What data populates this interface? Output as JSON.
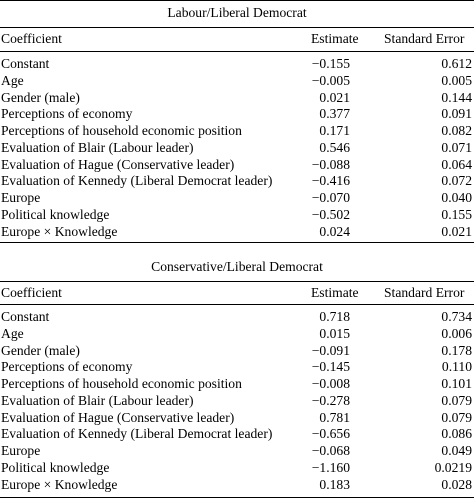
{
  "tables": [
    {
      "title": "Labour/Liberal Democrat",
      "headers": {
        "coefficient": "Coefficient",
        "estimate": "Estimate",
        "stderr": "Standard Error"
      },
      "rows": [
        {
          "coef": "Constant",
          "est": "−0.155",
          "se": "0.612"
        },
        {
          "coef": "Age",
          "est": "−0.005",
          "se": "0.005"
        },
        {
          "coef": "Gender (male)",
          "est": "0.021",
          "se": "0.144"
        },
        {
          "coef": "Perceptions of economy",
          "est": "0.377",
          "se": "0.091"
        },
        {
          "coef": "Perceptions of household economic position",
          "est": "0.171",
          "se": "0.082"
        },
        {
          "coef": "Evaluation of Blair (Labour leader)",
          "est": "0.546",
          "se": "0.071"
        },
        {
          "coef": "Evaluation of Hague (Conservative leader)",
          "est": "−0.088",
          "se": "0.064"
        },
        {
          "coef": "Evaluation of Kennedy (Liberal Democrat leader)",
          "est": "−0.416",
          "se": "0.072"
        },
        {
          "coef": "Europe",
          "est": "−0.070",
          "se": "0.040"
        },
        {
          "coef": "Political knowledge",
          "est": "−0.502",
          "se": "0.155"
        },
        {
          "coef": "Europe × Knowledge",
          "est": "0.024",
          "se": "0.021"
        }
      ]
    },
    {
      "title": "Conservative/Liberal Democrat",
      "headers": {
        "coefficient": "Coefficient",
        "estimate": "Estimate",
        "stderr": "Standard Error"
      },
      "rows": [
        {
          "coef": "Constant",
          "est": "0.718",
          "se": "0.734"
        },
        {
          "coef": "Age",
          "est": "0.015",
          "se": "0.006"
        },
        {
          "coef": "Gender (male)",
          "est": "−0.091",
          "se": "0.178"
        },
        {
          "coef": "Perceptions of economy",
          "est": "−0.145",
          "se": "0.110"
        },
        {
          "coef": "Perceptions of household economic position",
          "est": "−0.008",
          "se": "0.101"
        },
        {
          "coef": "Evaluation of Blair (Labour leader)",
          "est": "−0.278",
          "se": "0.079"
        },
        {
          "coef": "Evaluation of Hague (Conservative leader)",
          "est": "0.781",
          "se": "0.079"
        },
        {
          "coef": "Evaluation of Kennedy (Liberal Democrat leader)",
          "est": "−0.656",
          "se": "0.086"
        },
        {
          "coef": "Europe",
          "est": "−0.068",
          "se": "0.049"
        },
        {
          "coef": "Political knowledge",
          "est": "−1.160",
          "se": "0.0219"
        },
        {
          "coef": "Europe × Knowledge",
          "est": "0.183",
          "se": "0.028"
        }
      ]
    }
  ]
}
